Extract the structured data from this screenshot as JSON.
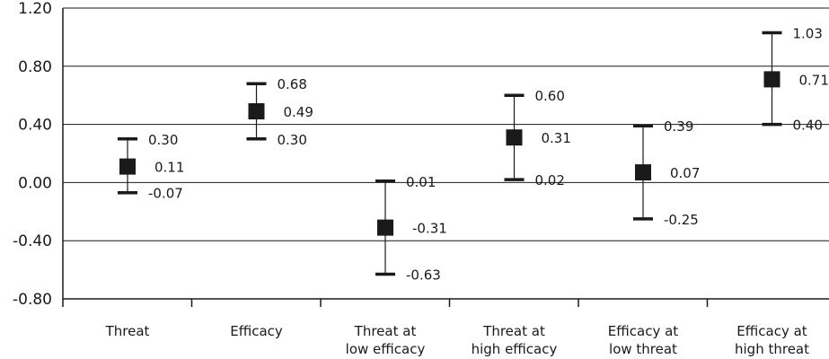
{
  "chart_data": {
    "type": "scatter",
    "subtype": "error-bar",
    "title": "",
    "xlabel": "",
    "ylabel": "",
    "ylim": [
      -0.8,
      1.2
    ],
    "yticks": [
      1.2,
      0.8,
      0.4,
      0.0,
      -0.4,
      -0.8
    ],
    "ytick_labels": [
      "1.20",
      "0.80",
      "0.40",
      "0.00",
      "-0.40",
      "-0.80"
    ],
    "grid": "horizontal",
    "legend": "none",
    "colors": {
      "marks": "#1a1a1a",
      "background": "#ffffff"
    },
    "categories": [
      [
        "Threat"
      ],
      [
        "Efficacy"
      ],
      [
        "Threat at",
        "low efficacy"
      ],
      [
        "Threat at",
        "high efficacy"
      ],
      [
        "Efficacy at",
        "low threat"
      ],
      [
        "Efficacy at",
        "high threat"
      ]
    ],
    "points": [
      {
        "estimate": 0.11,
        "lower": -0.07,
        "upper": 0.3,
        "estimate_label": "0.11",
        "lower_label": "-0.07",
        "upper_label": "0.30"
      },
      {
        "estimate": 0.49,
        "lower": 0.3,
        "upper": 0.68,
        "estimate_label": "0.49",
        "lower_label": "0.30",
        "upper_label": "0.68"
      },
      {
        "estimate": -0.31,
        "lower": -0.63,
        "upper": 0.01,
        "estimate_label": "-0.31",
        "lower_label": "-0.63",
        "upper_label": "0.01"
      },
      {
        "estimate": 0.31,
        "lower": 0.02,
        "upper": 0.6,
        "estimate_label": "0.31",
        "lower_label": "0.02",
        "upper_label": "0.60"
      },
      {
        "estimate": 0.07,
        "lower": -0.25,
        "upper": 0.39,
        "estimate_label": "0.07",
        "lower_label": "-0.25",
        "upper_label": "0.39"
      },
      {
        "estimate": 0.71,
        "lower": 0.4,
        "upper": 1.03,
        "estimate_label": "0.71",
        "lower_label": "0.40",
        "upper_label": "1.03"
      }
    ]
  }
}
